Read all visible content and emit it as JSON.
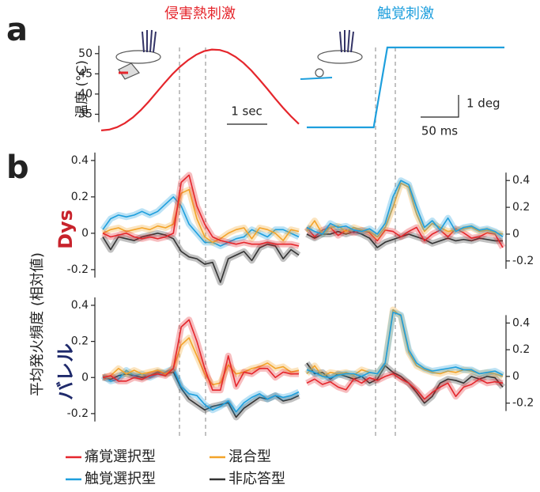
{
  "panel_a": {
    "panel_label": "a",
    "scale_time_heat": "1 sec",
    "scale_deg": "1 deg",
    "scale_time_touch": "50 ms"
  },
  "panel_b": {
    "panel_label": "b",
    "ylabel": "平均発火頻度 (相対値)",
    "row_labels": [
      "Dys",
      "バレル"
    ]
  },
  "legend": [
    {
      "name": "痛覚選択型",
      "color": "#e5262c"
    },
    {
      "name": "混合型",
      "color": "#f3a42a"
    },
    {
      "name": "触覚選択型",
      "color": "#1e9fdd"
    },
    {
      "name": "非応答型",
      "color": "#333333"
    }
  ],
  "chart_data": [
    {
      "type": "line",
      "title": "侵害熱刺激",
      "title_color": "#e5262c",
      "ylabel": "温度 (°C)",
      "color": "#e5262c",
      "values": [
        31,
        31.2,
        31.8,
        32.8,
        34.2,
        36,
        38.1,
        40.4,
        42.7,
        44.9,
        46.8,
        48.4,
        49.7,
        50.6,
        51,
        50.9,
        50.3,
        49.2,
        47.7,
        45.8,
        43.6,
        41.3,
        38.9,
        36.6,
        34.5,
        32.6
      ],
      "ylim": [
        30,
        52.5
      ],
      "yticks": [
        35,
        40,
        45,
        50
      ]
    },
    {
      "type": "line",
      "title": "触覚刺激",
      "title_color": "#1e9fdd",
      "color": "#1e9fdd",
      "x": [
        0,
        88,
        106,
        260
      ],
      "values": [
        0,
        0,
        3.6,
        3.6
      ],
      "xlim": [
        0,
        260
      ],
      "ylim": [
        0,
        3.6
      ]
    },
    {
      "type": "line",
      "ylim": [
        -0.27,
        0.43
      ],
      "yticks": [
        -0.2,
        0,
        0.2,
        0.4
      ],
      "series": [
        {
          "color": "#333333",
          "values": [
            -0.02,
            -0.09,
            -0.02,
            -0.03,
            -0.04,
            -0.02,
            -0.01,
            0,
            -0.01,
            -0.03,
            -0.1,
            -0.13,
            -0.14,
            -0.17,
            -0.16,
            -0.27,
            -0.14,
            -0.12,
            -0.1,
            -0.15,
            -0.08,
            -0.06,
            -0.07,
            -0.14,
            -0.09,
            -0.12
          ]
        },
        {
          "color": "#1e9fdd",
          "values": [
            0.02,
            0.08,
            0.1,
            0.09,
            0.1,
            0.12,
            0.1,
            0.12,
            0.16,
            0.2,
            0.15,
            0.05,
            0,
            -0.05,
            -0.05,
            -0.07,
            -0.05,
            -0.03,
            -0.02,
            0.02,
            0,
            -0.02,
            0.02,
            0.02,
            0,
            -0.02
          ]
        },
        {
          "color": "#f3a42a",
          "values": [
            0,
            0.02,
            0.03,
            0.01,
            0.02,
            0.03,
            0.02,
            0.04,
            0.03,
            0.05,
            0.22,
            0.24,
            0.08,
            -0.02,
            -0.05,
            -0.03,
            0,
            0.02,
            0.03,
            -0.03,
            0.03,
            0.02,
            0,
            -0.04,
            0.02,
            0.01
          ]
        },
        {
          "color": "#e5262c",
          "values": [
            0,
            -0.02,
            -0.01,
            0,
            -0.02,
            -0.03,
            -0.02,
            -0.03,
            -0.02,
            0,
            0.28,
            0.32,
            0.15,
            0.05,
            -0.02,
            -0.04,
            -0.05,
            -0.06,
            -0.05,
            -0.06,
            -0.06,
            -0.05,
            -0.06,
            -0.06,
            -0.06,
            -0.07
          ]
        }
      ]
    },
    {
      "type": "line",
      "ylim": [
        -0.36,
        0.59
      ],
      "yticks": [
        -0.2,
        0,
        0.2,
        0.4
      ],
      "series": [
        {
          "color": "#333333",
          "values": [
            0,
            -0.03,
            0,
            0,
            0.02,
            0,
            0.02,
            0,
            -0.03,
            -0.1,
            -0.06,
            -0.04,
            -0.02,
            0,
            -0.02,
            -0.04,
            -0.07,
            -0.05,
            -0.03,
            -0.05,
            -0.04,
            -0.05,
            -0.03,
            -0.04,
            -0.05,
            -0.05
          ]
        },
        {
          "color": "#e5262c",
          "values": [
            0.05,
            -0.02,
            0.03,
            0.05,
            -0.01,
            0.03,
            0.01,
            0.03,
            0.01,
            -0.05,
            0.03,
            0.02,
            -0.02,
            0.02,
            0.05,
            -0.05,
            0,
            0.03,
            -0.02,
            0.04,
            0.01,
            -0.03,
            -0.02,
            0.01,
            0,
            -0.1
          ]
        },
        {
          "color": "#f3a42a",
          "values": [
            0.02,
            0.1,
            0,
            0.05,
            0.06,
            0.02,
            0.05,
            0.03,
            0.02,
            -0.02,
            0.05,
            0.2,
            0.38,
            0.35,
            0.15,
            0.02,
            0.08,
            0.05,
            0.02,
            0.03,
            0.04,
            0.05,
            0.02,
            0.03,
            0.01,
            0
          ]
        },
        {
          "color": "#1e9fdd",
          "values": [
            0.05,
            0.02,
            0,
            0.08,
            0.05,
            0.06,
            0.03,
            0.02,
            0.04,
            0,
            0.08,
            0.28,
            0.4,
            0.37,
            0.2,
            0.05,
            0.1,
            0.03,
            0.12,
            0.02,
            0.05,
            0.06,
            0.03,
            0.04,
            0.02,
            -0.02
          ]
        }
      ]
    },
    {
      "type": "line",
      "ylim": [
        -0.275,
        0.435
      ],
      "yticks": [
        -0.2,
        0,
        0.2,
        0.4
      ],
      "series": [
        {
          "color": "#333333",
          "values": [
            0,
            -0.01,
            0.01,
            0.02,
            0.01,
            0,
            0.01,
            0.03,
            0.02,
            0.03,
            -0.06,
            -0.12,
            -0.15,
            -0.18,
            -0.16,
            -0.15,
            -0.14,
            -0.22,
            -0.17,
            -0.14,
            -0.11,
            -0.12,
            -0.1,
            -0.13,
            -0.12,
            -0.1
          ]
        },
        {
          "color": "#1e9fdd",
          "values": [
            0.01,
            -0.02,
            -0.01,
            0.04,
            0.01,
            0.02,
            0,
            0.02,
            0.03,
            0.05,
            -0.05,
            -0.09,
            -0.1,
            -0.15,
            -0.18,
            -0.16,
            -0.13,
            -0.19,
            -0.14,
            -0.11,
            -0.09,
            -0.12,
            -0.1,
            -0.11,
            -0.1,
            -0.08
          ]
        },
        {
          "color": "#f3a42a",
          "values": [
            0,
            0.01,
            0.05,
            0.02,
            0.04,
            0.02,
            0.03,
            0.04,
            0.02,
            0.05,
            0.18,
            0.22,
            0.12,
            0.02,
            -0.04,
            -0.03,
            0.07,
            0.02,
            0.03,
            0.05,
            0.06,
            0.08,
            0.05,
            0.06,
            0.03,
            0.04
          ]
        },
        {
          "color": "#e5262c",
          "values": [
            0,
            0.01,
            -0.02,
            -0.02,
            0,
            -0.01,
            0.01,
            0.02,
            0.01,
            0.05,
            0.28,
            0.32,
            0.2,
            0.05,
            -0.07,
            -0.07,
            0.12,
            -0.05,
            0.03,
            0.02,
            0.05,
            0.05,
            0,
            0.03,
            0.02,
            0.02
          ]
        }
      ]
    },
    {
      "type": "line",
      "ylim": [
        -0.38,
        0.58
      ],
      "yticks": [
        -0.2,
        0,
        0.2,
        0.4
      ],
      "series": [
        {
          "color": "#333333",
          "values": [
            0.1,
            0.02,
            0.03,
            -0.02,
            0.02,
            0,
            -0.02,
            0,
            -0.05,
            -0.02,
            0.08,
            0.03,
            0,
            -0.05,
            -0.12,
            -0.2,
            -0.15,
            -0.05,
            -0.02,
            -0.03,
            -0.05,
            0,
            -0.02,
            0,
            -0.01,
            -0.08
          ]
        },
        {
          "color": "#e5262c",
          "values": [
            -0.05,
            -0.02,
            -0.06,
            -0.04,
            -0.08,
            -0.1,
            -0.02,
            -0.05,
            -0.01,
            -0.03,
            0,
            0.02,
            -0.02,
            -0.05,
            -0.1,
            -0.17,
            -0.12,
            -0.08,
            -0.05,
            -0.15,
            -0.08,
            -0.06,
            -0.02,
            -0.05,
            -0.04,
            -0.05
          ]
        },
        {
          "color": "#f3a42a",
          "values": [
            0.02,
            0.08,
            0,
            0.03,
            0.02,
            0.03,
            0.01,
            0.05,
            0.03,
            0.02,
            0.1,
            0.5,
            0.45,
            0.18,
            0.08,
            0.05,
            0.03,
            0.02,
            0.04,
            0.03,
            0.05,
            0.04,
            0.02,
            0.03,
            0.02,
            0
          ]
        },
        {
          "color": "#1e9fdd",
          "values": [
            0.05,
            0.03,
            0,
            -0.01,
            0.01,
            0.02,
            0.02,
            0,
            0.03,
            0.02,
            0.1,
            0.48,
            0.46,
            0.2,
            0.1,
            0.06,
            0.04,
            0.05,
            0.06,
            0.07,
            0.05,
            0.05,
            0.02,
            0.03,
            0.04,
            0.01
          ]
        }
      ]
    }
  ]
}
